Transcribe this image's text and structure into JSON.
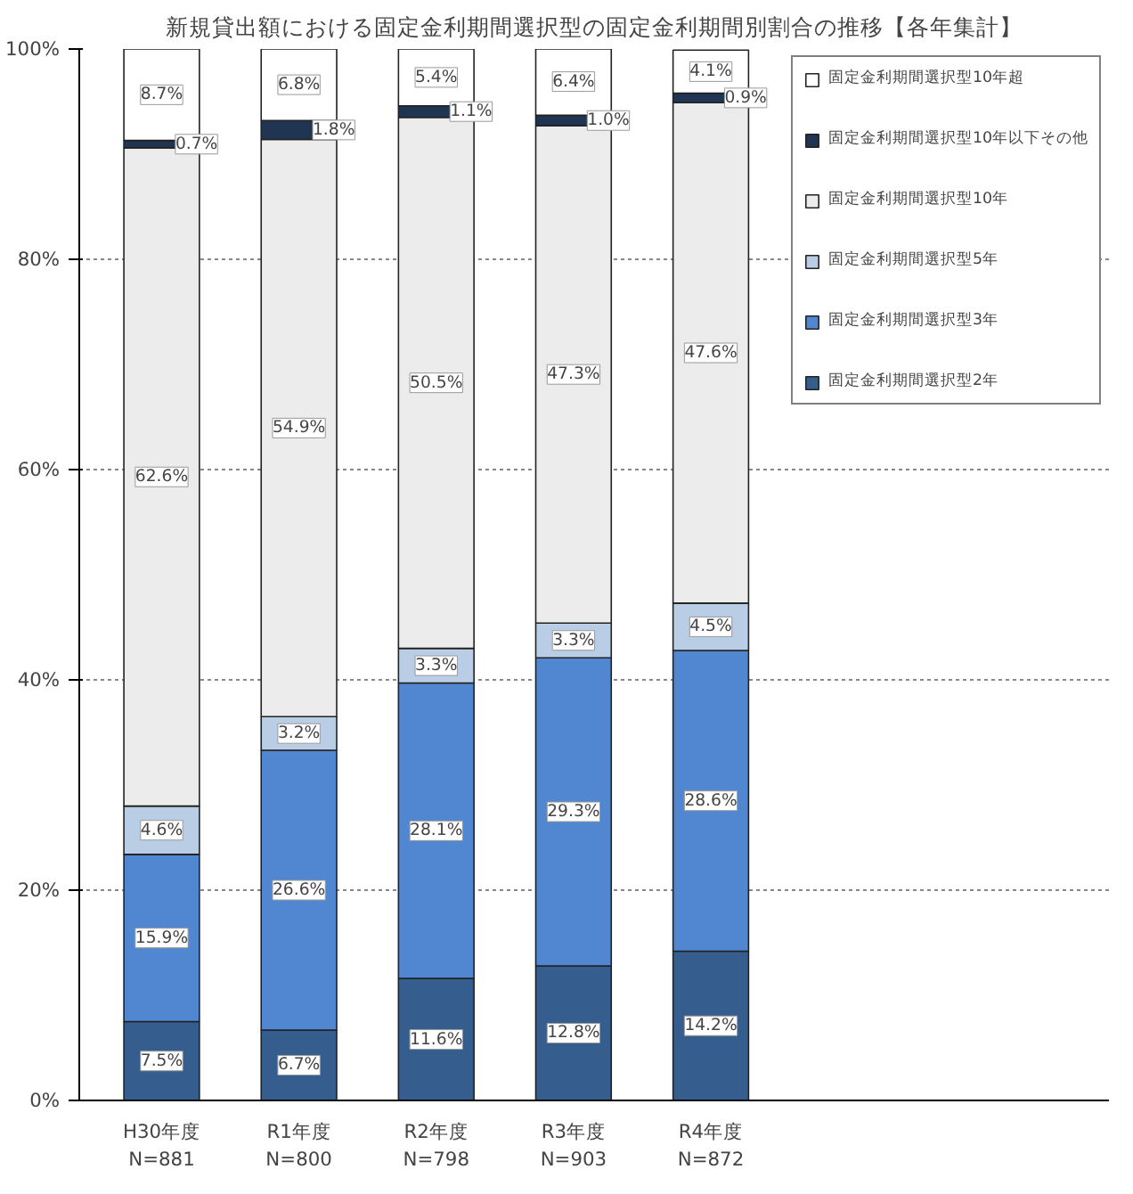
{
  "chart_data": {
    "type": "bar",
    "stacked": true,
    "title": "新規貸出額における固定金利期間選択型の固定金利期間別割合の推移【各年集計】",
    "categories": [
      "H30年度\nN=881",
      "R1年度\nN=800",
      "R2年度\nN=798",
      "R3年度\nN=903",
      "R4年度\nN=872"
    ],
    "series": [
      {
        "name": "固定金利期間選択型2年",
        "color": "#355e8e",
        "values": [
          7.5,
          6.7,
          11.6,
          12.8,
          14.2
        ],
        "value_labels": [
          "7.5%",
          "6.7%",
          "11.6%",
          "12.8%",
          "14.2%"
        ]
      },
      {
        "name": "固定金利期間選択型3年",
        "color": "#5087d0",
        "values": [
          15.9,
          26.6,
          28.1,
          29.3,
          28.6
        ],
        "value_labels": [
          "15.9%",
          "26.6%",
          "28.1%",
          "29.3%",
          "28.6%"
        ]
      },
      {
        "name": "固定金利期間選択型5年",
        "color": "#b9cde5",
        "values": [
          4.6,
          3.2,
          3.3,
          3.3,
          4.5
        ],
        "value_labels": [
          "4.6%",
          "3.2%",
          "3.3%",
          "3.3%",
          "4.5%"
        ]
      },
      {
        "name": "固定金利期間選択型10年",
        "color": "#ececec",
        "values": [
          62.6,
          54.9,
          50.5,
          47.3,
          47.6
        ],
        "value_labels": [
          "62.6%",
          "54.9%",
          "50.5%",
          "47.3%",
          "47.6%"
        ]
      },
      {
        "name": "固定金利期間選択型10年以下その他",
        "color": "#1f3552",
        "values": [
          0.7,
          1.8,
          1.1,
          1.0,
          0.9
        ],
        "value_labels": [
          "0.7%",
          "1.8%",
          "1.1%",
          "1.0%",
          "0.9%"
        ]
      },
      {
        "name": "固定金利期間選択型10年超",
        "color": "#ffffff",
        "values": [
          8.7,
          6.8,
          5.4,
          6.4,
          4.1
        ],
        "value_labels": [
          "8.7%",
          "6.8%",
          "5.4%",
          "6.4%",
          "4.1%"
        ]
      }
    ],
    "ylim": [
      0,
      100
    ],
    "yticks": [
      {
        "value": 0,
        "label": "0%"
      },
      {
        "value": 20,
        "label": "20%"
      },
      {
        "value": 40,
        "label": "40%"
      },
      {
        "value": 60,
        "label": "60%"
      },
      {
        "value": 80,
        "label": "80%"
      },
      {
        "value": 100,
        "label": "100%"
      }
    ],
    "grid": "y",
    "legend": "right"
  }
}
